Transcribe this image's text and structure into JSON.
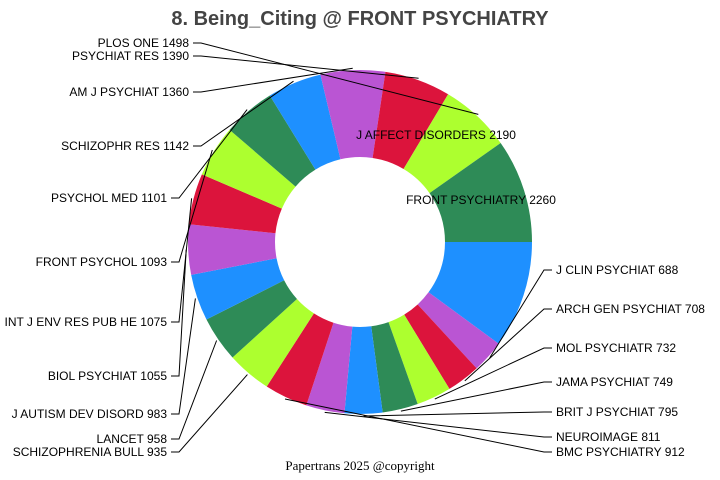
{
  "chart_data": {
    "type": "pie",
    "donut": true,
    "title": "8. Being_Citing @ FRONT PSYCHIATRY",
    "footer": "Papertrans 2025 @copyright",
    "colors": [
      "#1e90ff",
      "#ba55d3",
      "#dc143c",
      "#adff2f",
      "#2e8b57"
    ],
    "slices": [
      {
        "label": "FRONT PSYCHIATRY",
        "value": 2260,
        "text": "FRONT PSYCHIATRY 2260",
        "color": "#1e90ff"
      },
      {
        "label": "J CLIN PSYCHIAT",
        "value": 688,
        "text": "J CLIN PSYCHIAT 688",
        "color": "#ba55d3"
      },
      {
        "label": "ARCH GEN PSYCHIAT",
        "value": 708,
        "text": "ARCH GEN PSYCHIAT 708",
        "color": "#dc143c"
      },
      {
        "label": "MOL PSYCHIATR",
        "value": 732,
        "text": "MOL PSYCHIATR 732",
        "color": "#adff2f"
      },
      {
        "label": "JAMA PSYCHIAT",
        "value": 749,
        "text": "JAMA PSYCHIAT 749",
        "color": "#2e8b57"
      },
      {
        "label": "BRIT J PSYCHIAT",
        "value": 795,
        "text": "BRIT J PSYCHIAT 795",
        "color": "#1e90ff"
      },
      {
        "label": "NEUROIMAGE",
        "value": 811,
        "text": "NEUROIMAGE 811",
        "color": "#ba55d3"
      },
      {
        "label": "BMC PSYCHIATRY",
        "value": 912,
        "text": "BMC PSYCHIATRY 912",
        "color": "#dc143c"
      },
      {
        "label": "SCHIZOPHRENIA BULL",
        "value": 935,
        "text": "SCHIZOPHRENIA BULL 935",
        "color": "#adff2f"
      },
      {
        "label": "LANCET",
        "value": 958,
        "text": "LANCET 958",
        "color": "#2e8b57"
      },
      {
        "label": "J AUTISM DEV DISORD",
        "value": 983,
        "text": "J AUTISM DEV DISORD 983",
        "color": "#1e90ff"
      },
      {
        "label": "BIOL PSYCHIAT",
        "value": 1055,
        "text": "BIOL PSYCHIAT 1055",
        "color": "#ba55d3"
      },
      {
        "label": "INT J ENV RES PUB HE",
        "value": 1075,
        "text": "INT J ENV RES PUB HE 1075",
        "color": "#dc143c"
      },
      {
        "label": "FRONT PSYCHOL",
        "value": 1093,
        "text": "FRONT PSYCHOL 1093",
        "color": "#adff2f"
      },
      {
        "label": "PSYCHOL MED",
        "value": 1101,
        "text": "PSYCHOL MED 1101",
        "color": "#2e8b57"
      },
      {
        "label": "SCHIZOPHR RES",
        "value": 1142,
        "text": "SCHIZOPHR RES 1142",
        "color": "#1e90ff"
      },
      {
        "label": "AM J PSYCHIAT",
        "value": 1360,
        "text": "AM J PSYCHIAT 1360",
        "color": "#ba55d3"
      },
      {
        "label": "PSYCHIAT RES",
        "value": 1390,
        "text": "PSYCHIAT RES 1390",
        "color": "#dc143c"
      },
      {
        "label": "PLOS ONE",
        "value": 1498,
        "text": "PLOS ONE 1498",
        "color": "#adff2f"
      },
      {
        "label": "J AFFECT DISORDERS",
        "value": 2190,
        "text": "J AFFECT DISORDERS 2190",
        "color": "#2e8b57"
      }
    ]
  }
}
